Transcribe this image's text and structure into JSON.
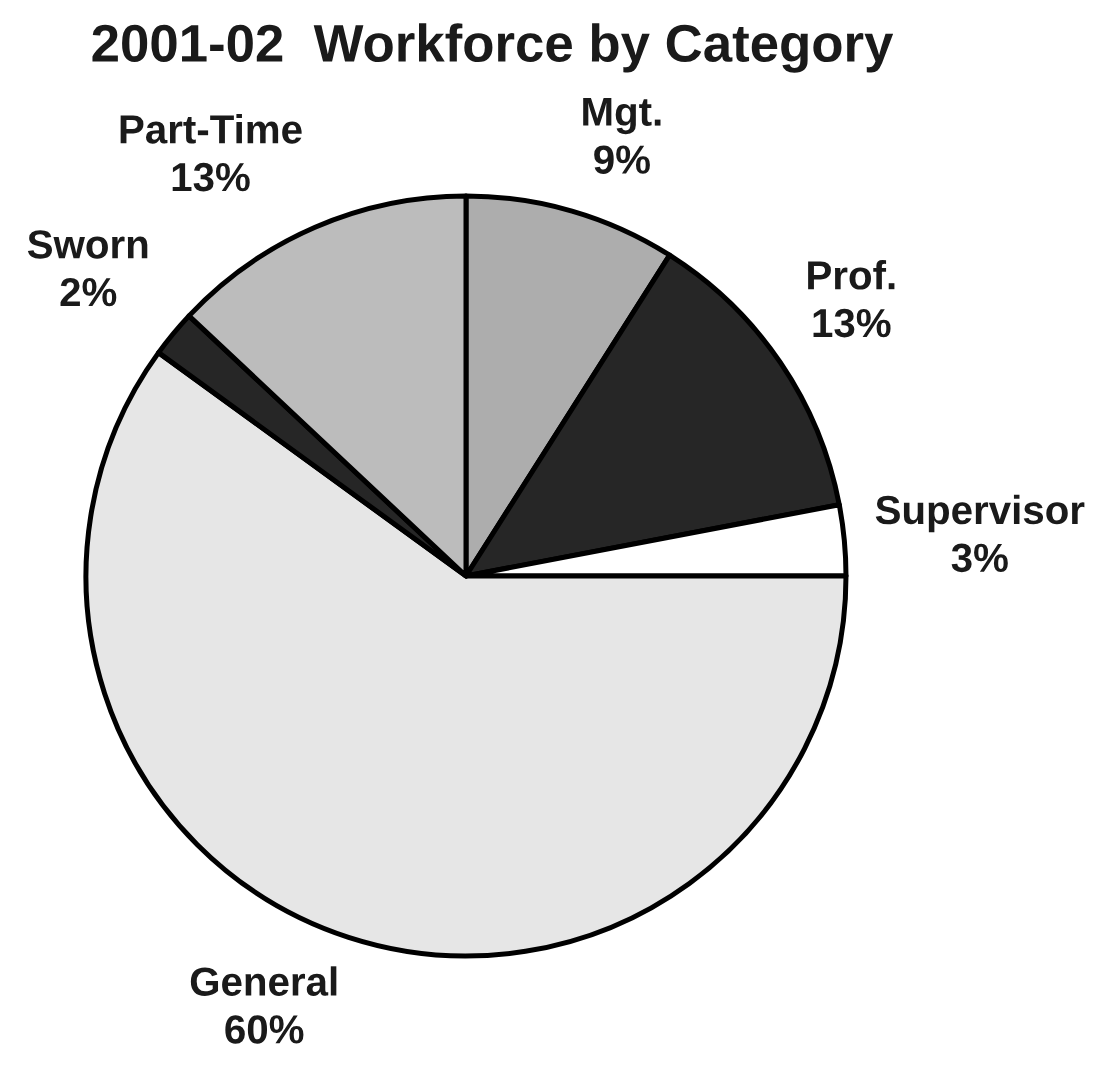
{
  "chart_data": {
    "type": "pie",
    "title": "2001-02  Workforce by Category",
    "categories": [
      "Mgt.",
      "Prof.",
      "Supervisor",
      "General",
      "Sworn",
      "Part-Time"
    ],
    "values": [
      9,
      13,
      3,
      60,
      2,
      13
    ],
    "value_labels": [
      "9%",
      "13%",
      "3%",
      "60%",
      "2%",
      "13%"
    ],
    "colors": [
      "#adadad",
      "#262626",
      "#ffffff",
      "#e6e6e6",
      "#262626",
      "#bcbcbc"
    ]
  }
}
